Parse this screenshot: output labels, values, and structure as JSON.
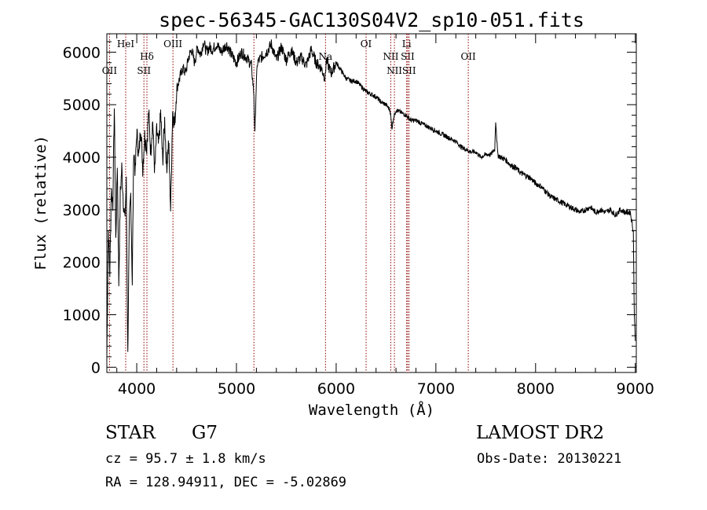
{
  "chart_data": {
    "type": "line",
    "title": "spec-56345-GAC130S04V2_sp10-051.fits",
    "xlabel": "Wavelength (Å)",
    "ylabel": "Flux (relative)",
    "xlim": [
      3700,
      9010
    ],
    "ylim": [
      -100,
      6350
    ],
    "xticks": [
      4000,
      5000,
      6000,
      7000,
      8000,
      9000
    ],
    "yticks": [
      0,
      1000,
      2000,
      3000,
      4000,
      5000,
      6000
    ],
    "grid": false,
    "line_color": "#000000",
    "line_marker_color": "#8b0000",
    "series": [
      {
        "x": [
          3700,
          3715,
          3730,
          3745,
          3760,
          3775,
          3790,
          3805,
          3820,
          3835,
          3850,
          3865,
          3880,
          3895,
          3910,
          3925,
          3940,
          3955,
          3970,
          3985,
          4000,
          4020,
          4040,
          4060,
          4080,
          4100,
          4120,
          4140,
          4160,
          4180,
          4200,
          4220,
          4240,
          4260,
          4280,
          4300,
          4320,
          4340,
          4360,
          4380,
          4400,
          4430,
          4460,
          4490,
          4520,
          4550,
          4580,
          4610,
          4640,
          4670,
          4700,
          4730,
          4760,
          4800,
          4850,
          4900,
          4950,
          5000,
          5050,
          5100,
          5150,
          5175,
          5185,
          5195,
          5210,
          5250,
          5300,
          5350,
          5400,
          5450,
          5500,
          5550,
          5600,
          5650,
          5700,
          5750,
          5800,
          5850,
          5890,
          5900,
          5950,
          6000,
          6050,
          6100,
          6150,
          6200,
          6250,
          6300,
          6350,
          6400,
          6450,
          6500,
          6540,
          6560,
          6575,
          6600,
          6650,
          6700,
          6750,
          6800,
          6850,
          6900,
          6950,
          7000,
          7050,
          7100,
          7150,
          7200,
          7250,
          7300,
          7350,
          7400,
          7450,
          7500,
          7550,
          7590,
          7600,
          7620,
          7650,
          7700,
          7750,
          7800,
          7850,
          7900,
          7950,
          8000,
          8050,
          8100,
          8150,
          8200,
          8250,
          8300,
          8350,
          8400,
          8450,
          8500,
          8550,
          8600,
          8650,
          8700,
          8750,
          8800,
          8850,
          8900,
          8950,
          8980,
          8990,
          9000
        ],
        "y": [
          200,
          2600,
          1800,
          3400,
          3100,
          4950,
          2400,
          3900,
          1600,
          3300,
          3800,
          3200,
          2800,
          3500,
          200,
          2700,
          3300,
          1600,
          4200,
          3700,
          4500,
          4000,
          4600,
          3800,
          4400,
          4200,
          4850,
          4100,
          4700,
          3700,
          4500,
          4200,
          4850,
          3900,
          4700,
          3800,
          4300,
          3000,
          4900,
          4600,
          5300,
          5500,
          5700,
          5600,
          5900,
          6050,
          5800,
          6100,
          5950,
          6200,
          6000,
          6100,
          6050,
          6150,
          6000,
          6150,
          5950,
          5800,
          6000,
          5900,
          5750,
          5200,
          4400,
          5200,
          5800,
          5900,
          6000,
          6150,
          5850,
          6100,
          5850,
          6050,
          5800,
          5900,
          5750,
          6050,
          5800,
          5700,
          5500,
          5850,
          5600,
          5800,
          5650,
          5500,
          5450,
          5450,
          5350,
          5250,
          5200,
          5150,
          5050,
          5000,
          4900,
          4550,
          4750,
          4900,
          4850,
          4800,
          4700,
          4700,
          4650,
          4600,
          4550,
          4500,
          4450,
          4400,
          4350,
          4300,
          4200,
          4150,
          4100,
          4100,
          4000,
          4050,
          4050,
          4150,
          4700,
          4050,
          4000,
          3950,
          3850,
          3800,
          3700,
          3650,
          3600,
          3500,
          3450,
          3350,
          3250,
          3200,
          3150,
          3100,
          3050,
          3000,
          2950,
          3000,
          3050,
          2950,
          3000,
          2950,
          3000,
          2900,
          3000,
          2950,
          2950,
          2600,
          1000,
          500
        ]
      }
    ],
    "lines": [
      {
        "x": 3727,
        "label": "OII",
        "row": 2
      },
      {
        "x": 3889,
        "label": "HeI",
        "row": 0
      },
      {
        "x": 4102,
        "label": "Hδ",
        "row": 1
      },
      {
        "x": 4072,
        "label": "SII",
        "row": 2
      },
      {
        "x": 4363,
        "label": "OIII",
        "row": 0
      },
      {
        "x": 5175,
        "label": "",
        "row": 0
      },
      {
        "x": 5893,
        "label": "Na",
        "row": 1
      },
      {
        "x": 6300,
        "label": "OI",
        "row": 0
      },
      {
        "x": 6548,
        "label": "NII",
        "row": 1
      },
      {
        "x": 6584,
        "label": "NII",
        "row": 2
      },
      {
        "x": 6707,
        "label": "Li",
        "row": 0
      },
      {
        "x": 6717,
        "label": "SII",
        "row": 1
      },
      {
        "x": 6731,
        "label": "SII",
        "row": 2
      },
      {
        "x": 7325,
        "label": "OII",
        "row": 1
      }
    ]
  },
  "info": {
    "class": "STAR",
    "subclass": "G7",
    "survey": "LAMOST DR2",
    "cz": "cz = 95.7 ± 1.8 km/s",
    "obs_date": "Obs-Date: 20130221",
    "coords": "RA = 128.94911, DEC =  -5.02869"
  }
}
